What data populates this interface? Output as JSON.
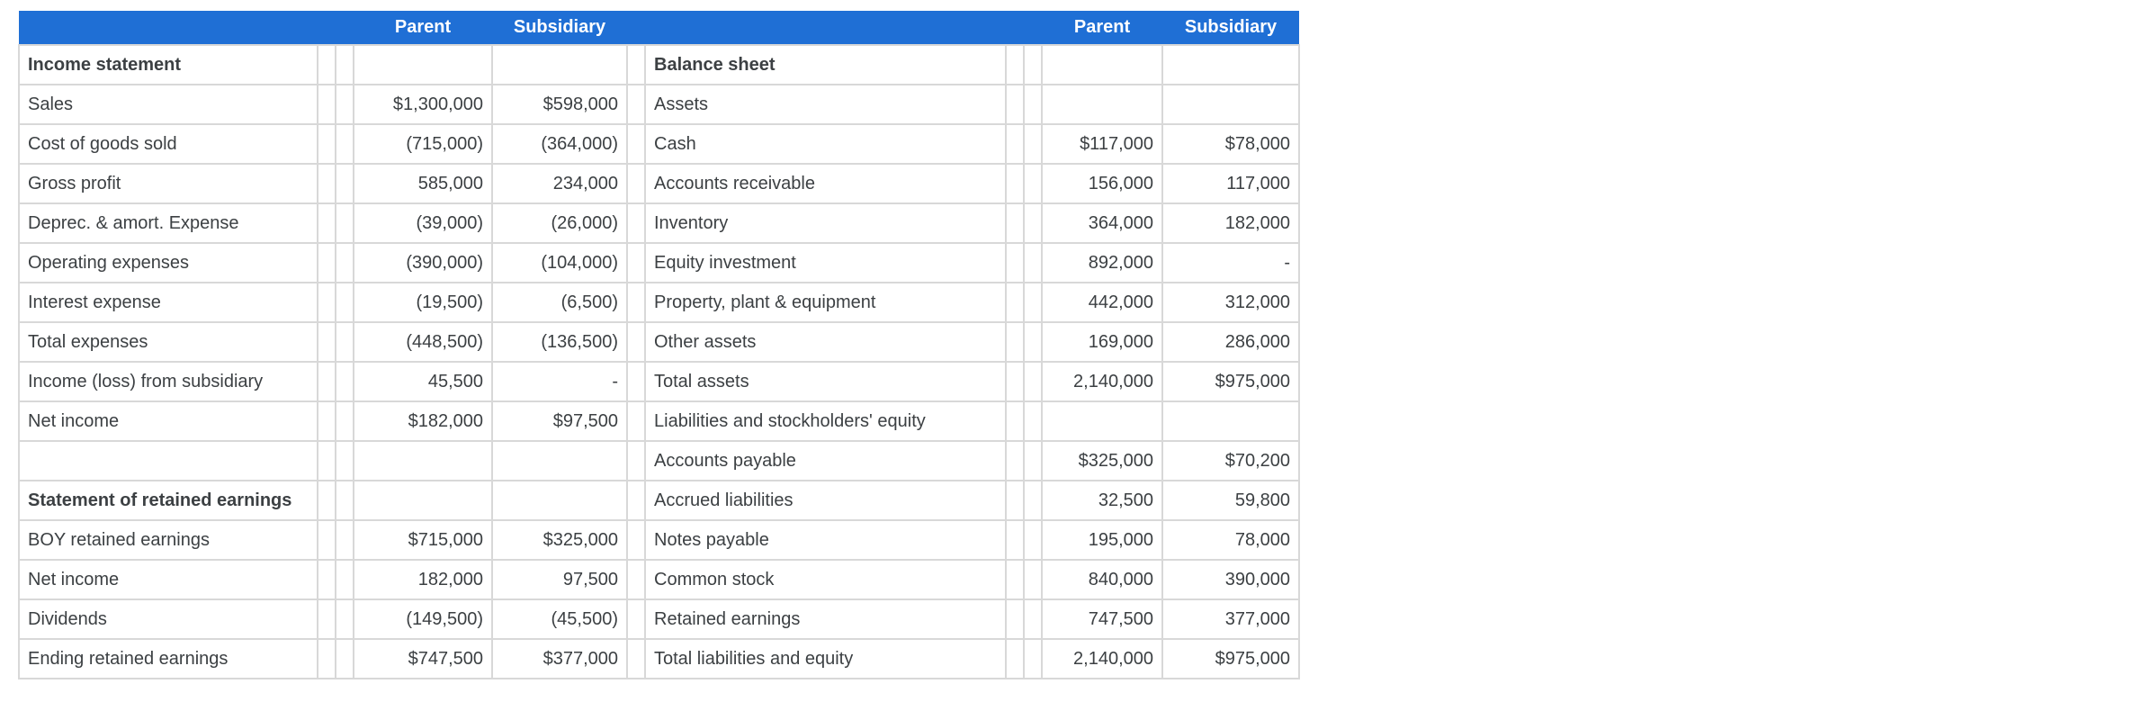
{
  "header": {
    "left": {
      "parent": "Parent",
      "subsidiary": "Subsidiary"
    },
    "right": {
      "parent": "Parent",
      "subsidiary": "Subsidiary"
    }
  },
  "colors": {
    "header_bg": "#1f6fd5",
    "header_text": "#ffffff",
    "grid_line": "#d8d8d8",
    "text": "#3c4043",
    "rule_line": "#151515"
  },
  "rows": [
    {
      "left": {
        "label": "Income statement",
        "bold": true,
        "parent": "",
        "sub": ""
      },
      "right": {
        "label": "Balance sheet",
        "bold": true,
        "parent": "",
        "sub": ""
      }
    },
    {
      "left": {
        "label": "Sales",
        "parent": "$1,300,000",
        "sub": "$598,000"
      },
      "right": {
        "label": "Assets",
        "parent": "",
        "sub": ""
      }
    },
    {
      "left": {
        "label": "Cost of goods sold",
        "parent": "(715,000)",
        "sub": "(364,000)",
        "underline": "single"
      },
      "right": {
        "label": "Cash",
        "parent": "$117,000",
        "sub": "$78,000"
      }
    },
    {
      "left": {
        "label": "Gross profit",
        "parent": "585,000",
        "sub": "234,000"
      },
      "right": {
        "label": "Accounts receivable",
        "parent": "156,000",
        "sub": "117,000"
      }
    },
    {
      "left": {
        "label": "Deprec. & amort. Expense",
        "parent": "(39,000)",
        "sub": "(26,000)"
      },
      "right": {
        "label": "Inventory",
        "parent": "364,000",
        "sub": "182,000"
      }
    },
    {
      "left": {
        "label": "Operating expenses",
        "parent": "(390,000)",
        "sub": "(104,000)"
      },
      "right": {
        "label": "Equity investment",
        "parent": "892,000",
        "sub": "-"
      }
    },
    {
      "left": {
        "label": "Interest expense",
        "parent": "(19,500)",
        "sub": "(6,500)",
        "underline": "single"
      },
      "right": {
        "label": "Property, plant & equipment",
        "parent": "442,000",
        "sub": "312,000"
      }
    },
    {
      "left": {
        "label": "Total expenses",
        "parent": "(448,500)",
        "sub": "(136,500)",
        "underline": "single"
      },
      "right": {
        "label": "Other assets",
        "parent": "169,000",
        "sub": "286,000",
        "underline": "single"
      }
    },
    {
      "left": {
        "label": "Income (loss) from subsidiary",
        "parent": "45,500",
        "sub": "-",
        "underline": "single"
      },
      "right": {
        "label": "Total assets",
        "parent": "2,140,000",
        "sub": "$975,000",
        "underline": "double"
      }
    },
    {
      "left": {
        "label": "Net income",
        "parent": "$182,000",
        "sub": "$97,500",
        "underline": "double"
      },
      "right": {
        "label": "Liabilities and stockholders' equity",
        "parent": "",
        "sub": ""
      }
    },
    {
      "left": {
        "label": "",
        "parent": "",
        "sub": ""
      },
      "right": {
        "label": "Accounts payable",
        "parent": "$325,000",
        "sub": "$70,200"
      }
    },
    {
      "left": {
        "label": "Statement of retained earnings",
        "bold": true,
        "parent": "",
        "sub": ""
      },
      "right": {
        "label": "Accrued liabilities",
        "parent": "32,500",
        "sub": "59,800"
      }
    },
    {
      "left": {
        "label": "BOY retained earnings",
        "parent": "$715,000",
        "sub": "$325,000"
      },
      "right": {
        "label": "Notes payable",
        "parent": "195,000",
        "sub": "78,000"
      }
    },
    {
      "left": {
        "label": "Net income",
        "parent": "182,000",
        "sub": "97,500"
      },
      "right": {
        "label": "Common stock",
        "parent": "840,000",
        "sub": "390,000"
      }
    },
    {
      "left": {
        "label": "Dividends",
        "parent": "(149,500)",
        "sub": "(45,500)",
        "underline": "single"
      },
      "right": {
        "label": "Retained earnings",
        "parent": "747,500",
        "sub": "377,000",
        "underline": "single"
      }
    },
    {
      "left": {
        "label": "Ending retained earnings",
        "parent": "$747,500",
        "sub": "$377,000",
        "underline": "double"
      },
      "right": {
        "label": "Total liabilities and equity",
        "parent": "2,140,000",
        "sub": "$975,000",
        "underline": "double"
      }
    }
  ]
}
